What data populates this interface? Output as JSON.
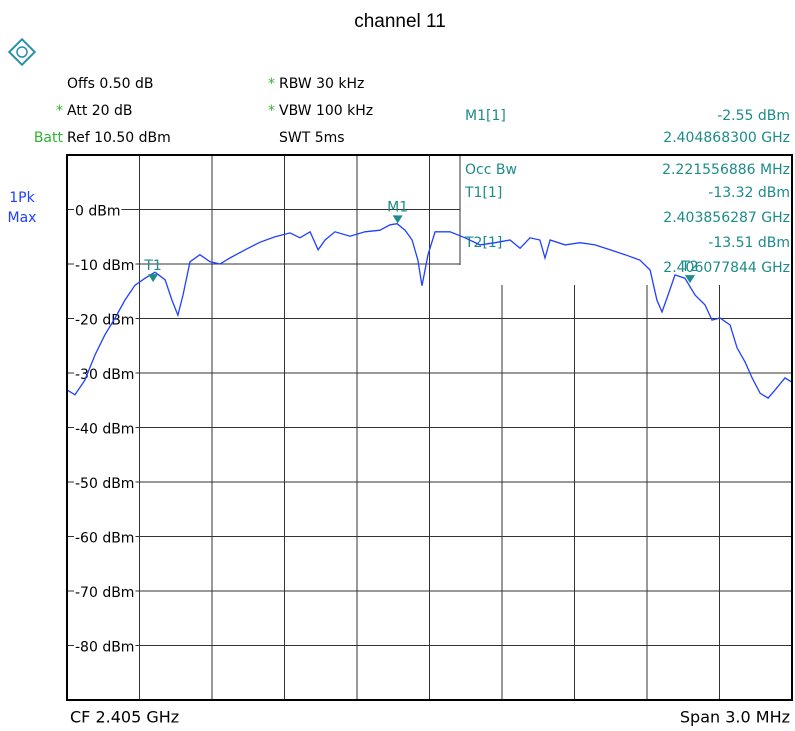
{
  "chart_data": {
    "type": "line",
    "title": "channel 11",
    "settings": [
      {
        "flag": null,
        "text": "Offs 0.50 dB"
      },
      {
        "flag": "*",
        "text": "Att  20 dB"
      },
      {
        "flag": "Batt",
        "text": "Ref  10.50 dBm"
      },
      {
        "flag": "*",
        "text": "RBW 30 kHz"
      },
      {
        "flag": "*",
        "text": "VBW 100 kHz"
      },
      {
        "flag": null,
        "text": "SWT 5ms"
      }
    ],
    "detector": [
      "1Pk",
      "Max"
    ],
    "occ_bw": {
      "name": "Occ Bw",
      "value_label": "2.221556886 MHz"
    },
    "markers": [
      {
        "name": "M1",
        "readout_name": "M1[1]",
        "x": 2.4048683,
        "y": -2.55,
        "y_label": "-2.55 dBm",
        "x_label": "2.404868300 GHz"
      },
      {
        "name": "T1",
        "readout_name": "T1[1]",
        "x": 2.403856287,
        "y": -13.32,
        "y_label": "-13.32 dBm",
        "x_label": "2.403856287 GHz"
      },
      {
        "name": "T2",
        "readout_name": "T2[1]",
        "x": 2.406077844,
        "y": -13.51,
        "y_label": "-13.51 dBm",
        "x_label": "2.406077844 GHz"
      }
    ],
    "footer": {
      "left": "CF 2.405 GHz",
      "right": "Span 3.0 MHz"
    },
    "xlim": [
      2.4035,
      2.4065
    ],
    "ylim": [
      -90,
      10
    ],
    "yticks": [
      {
        "value": 0,
        "label": "0 dBm"
      },
      {
        "value": -10,
        "label": "-10 dBm"
      },
      {
        "value": -20,
        "label": "-20 dBm"
      },
      {
        "value": -30,
        "label": "-30 dBm"
      },
      {
        "value": -40,
        "label": "-40 dBm"
      },
      {
        "value": -50,
        "label": "-50 dBm"
      },
      {
        "value": -60,
        "label": "-60 dBm"
      },
      {
        "value": -70,
        "label": "-70 dBm"
      },
      {
        "value": -80,
        "label": "-80 dBm"
      }
    ],
    "grid": true,
    "x": [
      2.4035,
      2.403533,
      2.403574,
      2.403616,
      2.403657,
      2.403699,
      2.40374,
      2.403781,
      2.403823,
      2.403864,
      2.403906,
      2.403934,
      2.403959,
      2.40398,
      2.404009,
      2.40405,
      2.404092,
      2.404133,
      2.404174,
      2.404237,
      2.404299,
      2.404361,
      2.404423,
      2.404464,
      2.404506,
      2.404539,
      2.404568,
      2.404609,
      2.404671,
      2.404733,
      2.404795,
      2.404837,
      2.404866,
      2.404899,
      2.404928,
      2.404952,
      2.404969,
      2.404994,
      2.405023,
      2.405085,
      2.405147,
      2.405209,
      2.405271,
      2.405333,
      2.405375,
      2.405416,
      2.405457,
      2.405478,
      2.405499,
      2.405561,
      2.405623,
      2.405685,
      2.405747,
      2.405809,
      2.405871,
      2.405913,
      2.405941,
      2.405962,
      2.405987,
      2.406016,
      2.406057,
      2.406099,
      2.40614,
      2.406169,
      2.406202,
      2.406244,
      2.406273,
      2.406306,
      2.406335,
      2.406368,
      2.406401,
      2.40643,
      2.406471,
      2.4065
    ],
    "series": [
      {
        "color": "#2040ff",
        "values": [
          -33.1,
          -34.0,
          -31.3,
          -26.7,
          -23.0,
          -19.9,
          -16.6,
          -13.9,
          -12.6,
          -11.5,
          -12.9,
          -16.6,
          -19.4,
          -15.7,
          -9.6,
          -8.3,
          -9.6,
          -10.0,
          -8.9,
          -7.4,
          -6.0,
          -5.0,
          -4.3,
          -5.2,
          -4.1,
          -7.4,
          -5.6,
          -4.1,
          -4.9,
          -4.1,
          -3.8,
          -2.8,
          -2.6,
          -3.8,
          -5.6,
          -9.3,
          -14.0,
          -8.3,
          -4.1,
          -4.1,
          -5.2,
          -6.5,
          -6.1,
          -5.6,
          -7.1,
          -5.2,
          -5.6,
          -8.9,
          -5.6,
          -6.5,
          -6.1,
          -6.5,
          -7.4,
          -8.3,
          -9.3,
          -11.1,
          -16.6,
          -18.8,
          -15.7,
          -12.0,
          -12.6,
          -15.7,
          -17.5,
          -20.3,
          -19.9,
          -21.2,
          -25.4,
          -28.0,
          -30.9,
          -33.7,
          -34.6,
          -33.1,
          -30.9,
          -31.7
        ]
      }
    ]
  }
}
